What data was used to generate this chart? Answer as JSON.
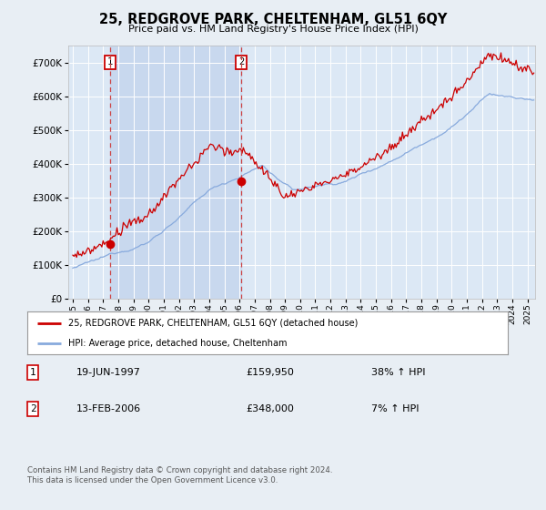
{
  "title": "25, REDGROVE PARK, CHELTENHAM, GL51 6QY",
  "subtitle": "Price paid vs. HM Land Registry's House Price Index (HPI)",
  "legend_line1": "25, REDGROVE PARK, CHELTENHAM, GL51 6QY (detached house)",
  "legend_line2": "HPI: Average price, detached house, Cheltenham",
  "footnote": "Contains HM Land Registry data © Crown copyright and database right 2024.\nThis data is licensed under the Open Government Licence v3.0.",
  "sale1_date": "19-JUN-1997",
  "sale1_price": "£159,950",
  "sale1_hpi": "38% ↑ HPI",
  "sale2_date": "13-FEB-2006",
  "sale2_price": "£348,000",
  "sale2_hpi": "7% ↑ HPI",
  "sale1_x": 1997.47,
  "sale1_y": 159950,
  "sale2_x": 2006.12,
  "sale2_y": 348000,
  "ylim": [
    0,
    750000
  ],
  "xlim_start": 1994.7,
  "xlim_end": 2025.5,
  "hpi_color": "#88aadd",
  "price_color": "#cc0000",
  "bg_color": "#e8eef4",
  "plot_bg": "#dce8f5",
  "shade_color": "#c8d8ee",
  "grid_color": "#ffffff",
  "dashed_line_color": "#cc4444"
}
